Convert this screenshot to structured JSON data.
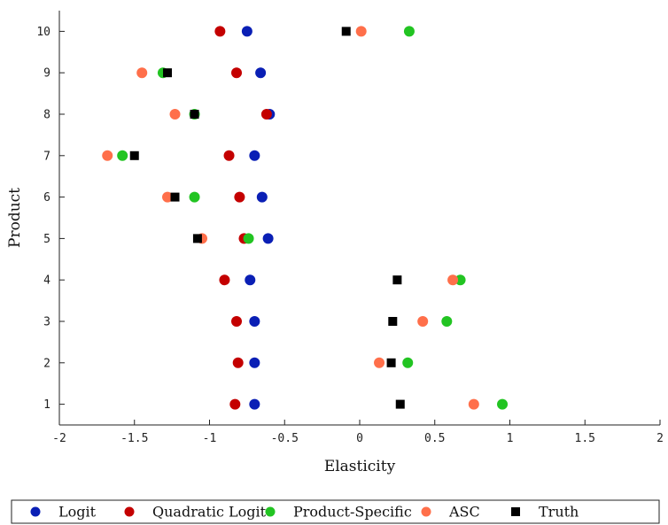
{
  "chart_data": {
    "type": "scatter",
    "title": "",
    "xlabel": "Elasticity",
    "ylabel": "Product",
    "xlim": [
      -2,
      2
    ],
    "ylim": [
      0.5,
      10.5
    ],
    "xticks": [
      "-2",
      "-1.5",
      "-1",
      "-0.5",
      "0",
      "0.5",
      "1",
      "1.5",
      "2"
    ],
    "yticks": [
      "1",
      "2",
      "3",
      "4",
      "5",
      "6",
      "7",
      "8",
      "9",
      "10"
    ],
    "grid": false,
    "legend_position": "bottom",
    "series": [
      {
        "name": "Logit",
        "marker": "circle",
        "color": "#0a1fb5",
        "points": [
          [
            -0.7,
            1
          ],
          [
            -0.7,
            2
          ],
          [
            -0.7,
            3
          ],
          [
            -0.73,
            4
          ],
          [
            -0.61,
            5
          ],
          [
            -0.65,
            6
          ],
          [
            -0.7,
            7
          ],
          [
            -0.6,
            8
          ],
          [
            -0.66,
            9
          ],
          [
            -0.75,
            10
          ]
        ]
      },
      {
        "name": "Quadratic Logit",
        "marker": "circle",
        "color": "#c40000",
        "points": [
          [
            -0.83,
            1
          ],
          [
            -0.81,
            2
          ],
          [
            -0.82,
            3
          ],
          [
            -0.9,
            4
          ],
          [
            -0.77,
            5
          ],
          [
            -0.8,
            6
          ],
          [
            -0.87,
            7
          ],
          [
            -0.62,
            8
          ],
          [
            -0.82,
            9
          ],
          [
            -0.93,
            10
          ]
        ]
      },
      {
        "name": "Product-Specific",
        "marker": "circle",
        "color": "#22c422",
        "points": [
          [
            0.95,
            1
          ],
          [
            0.32,
            2
          ],
          [
            0.58,
            3
          ],
          [
            0.67,
            4
          ],
          [
            -0.74,
            5
          ],
          [
            -1.1,
            6
          ],
          [
            -1.58,
            7
          ],
          [
            -1.1,
            8
          ],
          [
            -1.31,
            9
          ],
          [
            0.33,
            10
          ]
        ]
      },
      {
        "name": "ASC",
        "marker": "circle",
        "color": "#ff6f4a",
        "points": [
          [
            0.76,
            1
          ],
          [
            0.13,
            2
          ],
          [
            0.42,
            3
          ],
          [
            0.62,
            4
          ],
          [
            -1.05,
            5
          ],
          [
            -1.28,
            6
          ],
          [
            -1.68,
            7
          ],
          [
            -1.23,
            8
          ],
          [
            -1.45,
            9
          ],
          [
            0.01,
            10
          ]
        ]
      },
      {
        "name": "Truth",
        "marker": "square",
        "color": "#000000",
        "points": [
          [
            0.27,
            1
          ],
          [
            0.21,
            2
          ],
          [
            0.22,
            3
          ],
          [
            0.25,
            4
          ],
          [
            -1.08,
            5
          ],
          [
            -1.23,
            6
          ],
          [
            -1.5,
            7
          ],
          [
            -1.1,
            8
          ],
          [
            -1.28,
            9
          ],
          [
            -0.09,
            10
          ]
        ]
      }
    ]
  }
}
